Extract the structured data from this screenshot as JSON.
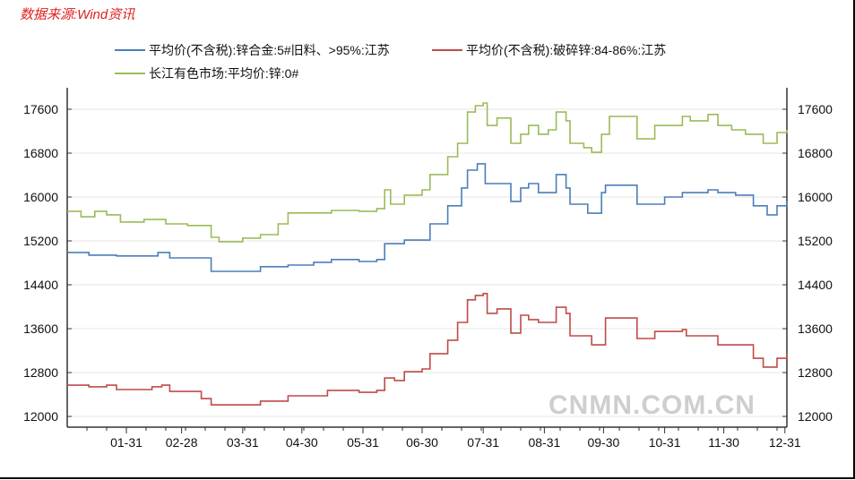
{
  "source_note": "数据来源:Wind资讯",
  "watermark": "CNMN.COM.CN",
  "chart_data": {
    "type": "line",
    "title": "",
    "xlabel": "",
    "ylabel": "",
    "x_unit": "day_of_year",
    "xlim": [
      0,
      365
    ],
    "ylim": [
      11800,
      17900
    ],
    "grid": true,
    "legend_position": "top",
    "yticks": [
      12000,
      12800,
      13600,
      14400,
      15200,
      16000,
      16800,
      17600
    ],
    "ytick_labels": [
      "12000",
      "12800",
      "13600",
      "14400",
      "15200",
      "16000",
      "16800",
      "17600"
    ],
    "xticks": [
      30,
      58,
      89,
      119,
      150,
      180,
      211,
      242,
      272,
      303,
      333,
      364
    ],
    "xtick_labels": [
      "01-31",
      "02-28",
      "03-31",
      "04-30",
      "05-31",
      "06-30",
      "07-31",
      "08-31",
      "09-30",
      "10-31",
      "11-30",
      "12-31"
    ],
    "series": [
      {
        "name": "平均价(不含税):锌合金:5#旧料、>95%:江苏",
        "color": "#4a7ebb",
        "x": [
          0,
          11,
          25,
          46,
          52,
          73,
          84,
          98,
          112,
          125,
          134,
          148,
          157,
          161,
          171,
          180,
          184,
          193,
          200,
          203,
          208,
          212,
          218,
          225,
          230,
          234,
          239,
          248,
          253,
          255,
          262,
          264,
          271,
          273,
          287,
          289,
          303,
          312,
          325,
          330,
          339,
          348,
          355,
          360,
          365
        ],
        "y": [
          14990,
          14940,
          14925,
          14990,
          14890,
          14645,
          14645,
          14730,
          14760,
          14810,
          14860,
          14825,
          14860,
          15150,
          15215,
          15215,
          15510,
          15840,
          16165,
          16490,
          16605,
          16245,
          16245,
          15920,
          16165,
          16245,
          16080,
          16410,
          16165,
          15870,
          15870,
          15705,
          16080,
          16215,
          16215,
          15870,
          16000,
          16080,
          16130,
          16080,
          16035,
          15840,
          15675,
          15840,
          15920
        ]
      },
      {
        "name": "平均价(不含税):破碎锌:84-86%:江苏",
        "color": "#be4b48",
        "x": [
          0,
          11,
          20,
          25,
          43,
          48,
          52,
          61,
          68,
          73,
          84,
          98,
          112,
          132,
          148,
          157,
          161,
          166,
          171,
          180,
          184,
          193,
          198,
          203,
          207,
          211,
          213,
          218,
          225,
          230,
          234,
          239,
          248,
          253,
          255,
          262,
          266,
          273,
          287,
          289,
          298,
          312,
          314,
          325,
          330,
          339,
          348,
          353,
          360,
          365
        ],
        "y": [
          12570,
          12540,
          12570,
          12490,
          12540,
          12570,
          12455,
          12455,
          12325,
          12210,
          12210,
          12280,
          12375,
          12475,
          12440,
          12475,
          12700,
          12655,
          12815,
          12865,
          13145,
          13390,
          13715,
          14125,
          14205,
          14240,
          13880,
          13960,
          13520,
          13845,
          13765,
          13715,
          13990,
          13880,
          13470,
          13470,
          13305,
          13795,
          13795,
          13420,
          13550,
          13585,
          13470,
          13470,
          13305,
          13305,
          13060,
          12900,
          13060,
          13145
        ]
      },
      {
        "name": "长江有色市场:平均价:锌:0#",
        "color": "#9bbb59",
        "x": [
          0,
          7,
          14,
          20,
          27,
          39,
          50,
          61,
          73,
          77,
          89,
          98,
          107,
          112,
          125,
          134,
          148,
          157,
          161,
          164,
          171,
          180,
          184,
          193,
          198,
          203,
          207,
          211,
          213,
          218,
          225,
          230,
          234,
          239,
          244,
          248,
          253,
          255,
          262,
          266,
          271,
          275,
          287,
          289,
          294,
          298,
          312,
          316,
          325,
          330,
          337,
          344,
          353,
          360,
          365
        ],
        "y": [
          15740,
          15640,
          15740,
          15675,
          15545,
          15590,
          15510,
          15480,
          15265,
          15185,
          15250,
          15315,
          15510,
          15710,
          15710,
          15755,
          15740,
          15790,
          16130,
          15870,
          16035,
          16130,
          16410,
          16735,
          16980,
          17550,
          17665,
          17715,
          17305,
          17440,
          16980,
          17145,
          17305,
          17145,
          17225,
          17550,
          17390,
          16980,
          16900,
          16815,
          17145,
          17470,
          17470,
          17060,
          17060,
          17305,
          17470,
          17390,
          17505,
          17305,
          17225,
          17145,
          16980,
          17175,
          17225
        ]
      }
    ]
  }
}
